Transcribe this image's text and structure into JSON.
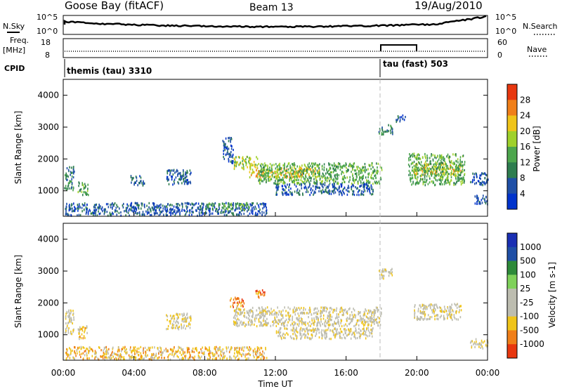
{
  "header": {
    "station": "Goose Bay (fitACF)",
    "beam": "Beam 13",
    "date": "19/Aug/2010"
  },
  "top_panels": {
    "noise": {
      "left_label": "N.Sky",
      "right_label": "N.Search",
      "left_ticks": [
        "10^5",
        "10^0"
      ],
      "right_ticks": [
        "10^5",
        "10^0"
      ]
    },
    "freq": {
      "left_label_line1": "Freq.",
      "left_label_line2": "[MHz]",
      "right_label": "Nave",
      "left_ticks": [
        "18",
        "8"
      ],
      "right_ticks": [
        "60",
        "0"
      ]
    },
    "cpid": {
      "label": "CPID",
      "modes": [
        "themis (tau) 3310",
        "tau (fast) 503"
      ]
    }
  },
  "colors": {
    "power": [
      "#0033cc",
      "#1f4fa6",
      "#2e7d4f",
      "#4da64d",
      "#9fd12b",
      "#f0c419",
      "#f07f19",
      "#e8370f",
      "#cc0000"
    ],
    "velocity": [
      "#cc0000",
      "#e8370f",
      "#f07f19",
      "#f0c419",
      "#bdbdb0",
      "#bdbdb0",
      "#7fd15a",
      "#2e8a3a",
      "#1f4fa6",
      "#1a2fb3"
    ],
    "ground_scatter": "#a9a9a0"
  },
  "chart_data": [
    {
      "type": "heatmap",
      "name": "power",
      "ylabel": "Slant Range [km]",
      "yticks": [
        "1000",
        "2000",
        "3000",
        "4000"
      ],
      "ylim": [
        200,
        4500
      ],
      "colorbar_label": "Power [dB]",
      "colorbar_ticks": [
        "4",
        "8",
        "12",
        "16",
        "20",
        "24",
        "28"
      ],
      "xlim": [
        0,
        24
      ],
      "patches": [
        {
          "t0": 0.05,
          "t1": 0.6,
          "r0": 1050,
          "r1": 1800,
          "level": 2
        },
        {
          "t0": 0.8,
          "t1": 1.4,
          "r0": 900,
          "r1": 1300,
          "level": 3
        },
        {
          "t0": 3.8,
          "t1": 4.6,
          "r0": 1200,
          "r1": 1500,
          "level": 1
        },
        {
          "t0": 5.8,
          "t1": 7.2,
          "r0": 1200,
          "r1": 1700,
          "level": 1
        },
        {
          "t0": 9.0,
          "t1": 9.6,
          "r0": 1900,
          "r1": 2700,
          "level": 1
        },
        {
          "t0": 9.6,
          "t1": 11.0,
          "r0": 1700,
          "r1": 2100,
          "level": 4
        },
        {
          "t0": 10.5,
          "t1": 14.5,
          "r0": 1450,
          "r1": 1750,
          "level": 5
        },
        {
          "t0": 11.0,
          "t1": 18.0,
          "r0": 1250,
          "r1": 1900,
          "level": 3
        },
        {
          "t0": 12.0,
          "t1": 17.5,
          "r0": 900,
          "r1": 1250,
          "level": 1
        },
        {
          "t0": 17.8,
          "t1": 18.6,
          "r0": 2800,
          "r1": 3100,
          "level": 2
        },
        {
          "t0": 18.8,
          "t1": 19.4,
          "r0": 3200,
          "r1": 3400,
          "level": 1
        },
        {
          "t0": 19.8,
          "t1": 22.5,
          "r0": 1500,
          "r1": 1900,
          "level": 5
        },
        {
          "t0": 19.5,
          "t1": 22.7,
          "r0": 1200,
          "r1": 2200,
          "level": 3
        },
        {
          "t0": 23.0,
          "t1": 24.0,
          "r0": 1200,
          "r1": 1600,
          "level": 1
        },
        {
          "t0": 23.2,
          "t1": 24.0,
          "r0": 600,
          "r1": 900,
          "level": 1
        },
        {
          "t0": 0.1,
          "t1": 11.5,
          "r0": 250,
          "r1": 650,
          "level": 1
        },
        {
          "t0": 8.0,
          "t1": 10.5,
          "r0": 450,
          "r1": 650,
          "level": 3
        }
      ]
    },
    {
      "type": "heatmap",
      "name": "velocity",
      "ylabel": "Slant Range [km]",
      "yticks": [
        "1000",
        "2000",
        "3000",
        "4000"
      ],
      "ylim": [
        200,
        4500
      ],
      "colorbar_label": "Velocity [m s-1]",
      "colorbar_ticks": [
        "1000",
        "500",
        "100",
        "25",
        "-25",
        "-100",
        "-500",
        "-1000"
      ],
      "xlim": [
        0,
        24
      ],
      "xticks": [
        "00:00",
        "04:00",
        "08:00",
        "12:00",
        "16:00",
        "20:00",
        "00:00"
      ],
      "xlabel": "Time UT",
      "patches": [
        {
          "t0": 0.05,
          "t1": 0.6,
          "r0": 1050,
          "r1": 1800,
          "level": 4
        },
        {
          "t0": 0.8,
          "t1": 1.4,
          "r0": 900,
          "r1": 1300,
          "level": 3
        },
        {
          "t0": 5.8,
          "t1": 7.2,
          "r0": 1200,
          "r1": 1700,
          "level": 4
        },
        {
          "t0": 9.4,
          "t1": 10.2,
          "r0": 1900,
          "r1": 2200,
          "level": 2
        },
        {
          "t0": 10.8,
          "t1": 11.4,
          "r0": 2200,
          "r1": 2450,
          "level": 2
        },
        {
          "t0": 9.6,
          "t1": 18.0,
          "r0": 1300,
          "r1": 1900,
          "level": 4
        },
        {
          "t0": 12.0,
          "t1": 17.5,
          "r0": 900,
          "r1": 1250,
          "level": 4
        },
        {
          "t0": 17.8,
          "t1": 18.6,
          "r0": 2800,
          "r1": 3100,
          "level": 4
        },
        {
          "t0": 19.8,
          "t1": 22.5,
          "r0": 1500,
          "r1": 2000,
          "level": 4
        },
        {
          "t0": 23.0,
          "t1": 24.0,
          "r0": 600,
          "r1": 900,
          "level": 4
        },
        {
          "t0": 0.1,
          "t1": 11.5,
          "r0": 250,
          "r1": 650,
          "level": 3
        }
      ]
    }
  ]
}
